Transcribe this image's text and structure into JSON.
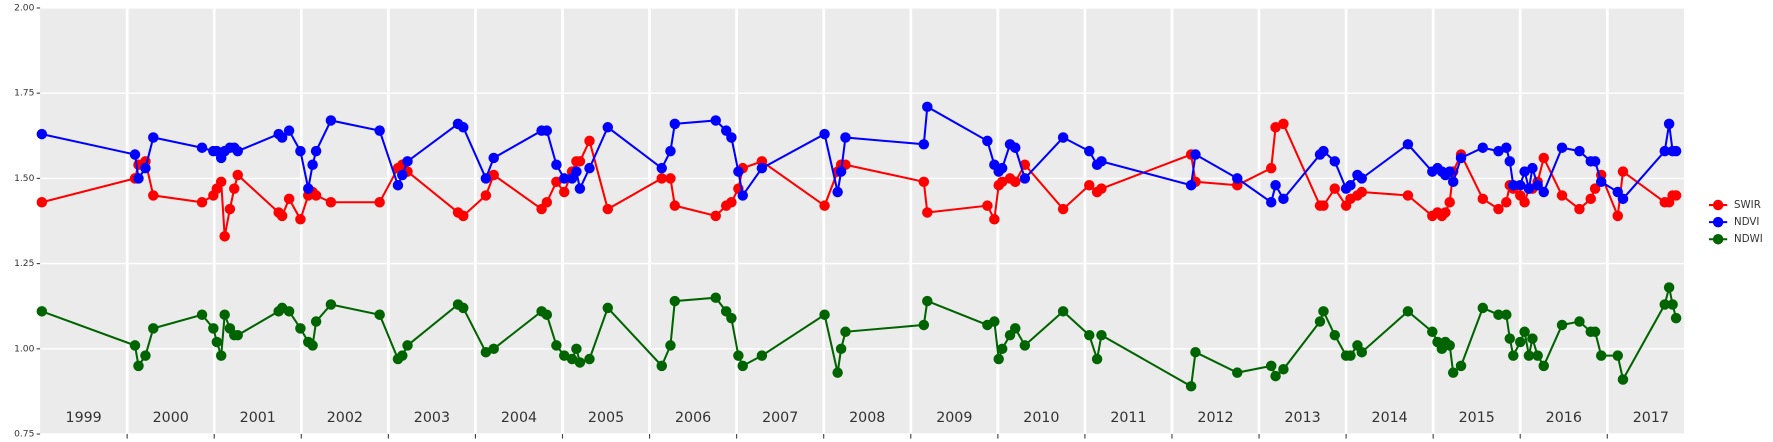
{
  "chart_data": {
    "type": "line",
    "x": [
      1999.02,
      2000.09,
      2000.13,
      2000.21,
      2000.3,
      2000.86,
      2000.99,
      2001.03,
      2001.08,
      2001.12,
      2001.18,
      2001.23,
      2001.27,
      2001.74,
      2001.78,
      2001.86,
      2001.99,
      2002.08,
      2002.13,
      2002.17,
      2002.34,
      2002.9,
      2003.11,
      2003.16,
      2003.22,
      2003.8,
      2003.86,
      2004.12,
      2004.21,
      2004.76,
      2004.82,
      2004.93,
      2005.02,
      2005.11,
      2005.16,
      2005.2,
      2005.31,
      2005.52,
      2006.14,
      2006.24,
      2006.29,
      2006.76,
      2006.88,
      2006.94,
      2007.02,
      2007.07,
      2007.29,
      2008.01,
      2008.16,
      2008.2,
      2008.25,
      2009.15,
      2009.19,
      2009.88,
      2009.96,
      2010.01,
      2010.05,
      2010.14,
      2010.2,
      2010.31,
      2010.75,
      2011.05,
      2011.14,
      2011.19,
      2012.22,
      2012.27,
      2012.75,
      2013.14,
      2013.19,
      2013.28,
      2013.7,
      2013.74,
      2013.87,
      2014.0,
      2014.05,
      2014.13,
      2014.18,
      2014.71,
      2014.99,
      2015.05,
      2015.1,
      2015.14,
      2015.19,
      2015.23,
      2015.32,
      2015.57,
      2015.75,
      2015.84,
      2015.88,
      2015.92,
      2016.0,
      2016.05,
      2016.1,
      2016.14,
      2016.2,
      2016.27,
      2016.48,
      2016.68,
      2016.81,
      2016.86,
      2016.93,
      2017.12,
      2017.18,
      2017.66,
      2017.71,
      2017.75,
      2017.79
    ],
    "series": [
      {
        "name": "SWIR",
        "color": "#ff0000",
        "values": [
          1.43,
          1.5,
          1.54,
          1.55,
          1.45,
          1.43,
          1.45,
          1.47,
          1.49,
          1.33,
          1.41,
          1.47,
          1.51,
          1.4,
          1.39,
          1.44,
          1.38,
          1.45,
          1.46,
          1.45,
          1.43,
          1.43,
          1.53,
          1.54,
          1.52,
          1.4,
          1.39,
          1.45,
          1.51,
          1.41,
          1.43,
          1.49,
          1.46,
          1.52,
          1.55,
          1.55,
          1.61,
          1.41,
          1.5,
          1.5,
          1.42,
          1.39,
          1.42,
          1.43,
          1.47,
          1.53,
          1.55,
          1.42,
          1.52,
          1.54,
          1.54,
          1.49,
          1.4,
          1.42,
          1.38,
          1.48,
          1.49,
          1.5,
          1.49,
          1.54,
          1.41,
          1.48,
          1.46,
          1.47,
          1.57,
          1.49,
          1.48,
          1.53,
          1.65,
          1.66,
          1.42,
          1.42,
          1.47,
          1.42,
          1.44,
          1.45,
          1.46,
          1.45,
          1.39,
          1.4,
          1.39,
          1.4,
          1.43,
          1.52,
          1.57,
          1.44,
          1.41,
          1.43,
          1.48,
          1.47,
          1.45,
          1.43,
          1.47,
          1.47,
          1.49,
          1.56,
          1.45,
          1.41,
          1.44,
          1.47,
          1.51,
          1.39,
          1.52,
          1.43,
          1.43,
          1.45,
          1.45
        ]
      },
      {
        "name": "NDVI",
        "color": "#0000ff",
        "values": [
          1.63,
          1.57,
          1.5,
          1.53,
          1.62,
          1.59,
          1.58,
          1.58,
          1.56,
          1.58,
          1.59,
          1.59,
          1.58,
          1.63,
          1.62,
          1.64,
          1.58,
          1.47,
          1.54,
          1.58,
          1.67,
          1.64,
          1.48,
          1.51,
          1.55,
          1.66,
          1.65,
          1.5,
          1.56,
          1.64,
          1.64,
          1.54,
          1.5,
          1.5,
          1.52,
          1.47,
          1.53,
          1.65,
          1.53,
          1.58,
          1.66,
          1.67,
          1.64,
          1.62,
          1.52,
          1.45,
          1.53,
          1.63,
          1.46,
          1.52,
          1.62,
          1.6,
          1.71,
          1.61,
          1.54,
          1.52,
          1.53,
          1.6,
          1.59,
          1.5,
          1.62,
          1.58,
          1.54,
          1.55,
          1.48,
          1.57,
          1.5,
          1.43,
          1.48,
          1.44,
          1.57,
          1.58,
          1.55,
          1.47,
          1.48,
          1.51,
          1.5,
          1.6,
          1.52,
          1.53,
          1.52,
          1.51,
          1.52,
          1.49,
          1.56,
          1.59,
          1.58,
          1.59,
          1.55,
          1.48,
          1.48,
          1.52,
          1.47,
          1.53,
          1.48,
          1.46,
          1.59,
          1.58,
          1.55,
          1.55,
          1.49,
          1.46,
          1.44,
          1.58,
          1.66,
          1.58,
          1.58
        ]
      },
      {
        "name": "NDWI",
        "color": "#006400",
        "values": [
          1.11,
          1.01,
          0.95,
          0.98,
          1.06,
          1.1,
          1.06,
          1.02,
          0.98,
          1.1,
          1.06,
          1.04,
          1.04,
          1.11,
          1.12,
          1.11,
          1.06,
          1.02,
          1.01,
          1.08,
          1.13,
          1.1,
          0.97,
          0.98,
          1.01,
          1.13,
          1.12,
          0.99,
          1.0,
          1.11,
          1.1,
          1.01,
          0.98,
          0.97,
          1.0,
          0.96,
          0.97,
          1.12,
          0.95,
          1.01,
          1.14,
          1.15,
          1.11,
          1.09,
          0.98,
          0.95,
          0.98,
          1.1,
          0.93,
          1.0,
          1.05,
          1.07,
          1.14,
          1.07,
          1.08,
          0.97,
          1.0,
          1.04,
          1.06,
          1.01,
          1.11,
          1.04,
          0.97,
          1.04,
          0.89,
          0.99,
          0.93,
          0.95,
          0.92,
          0.94,
          1.08,
          1.11,
          1.04,
          0.98,
          0.98,
          1.01,
          0.99,
          1.11,
          1.05,
          1.02,
          1.0,
          1.02,
          1.01,
          0.93,
          0.95,
          1.12,
          1.1,
          1.1,
          1.03,
          0.98,
          1.02,
          1.05,
          0.98,
          1.03,
          0.98,
          0.95,
          1.07,
          1.08,
          1.05,
          1.05,
          0.98,
          0.98,
          0.91,
          1.13,
          1.18,
          1.13,
          1.09
        ]
      }
    ],
    "xlim": [
      1999,
      2017.88
    ],
    "xticks": [
      2000,
      2001,
      2002,
      2003,
      2004,
      2005,
      2006,
      2007,
      2008,
      2009,
      2010,
      2011,
      2012,
      2013,
      2014,
      2015,
      2016,
      2017
    ],
    "year_labels": [
      {
        "value": 1999.5,
        "label": "1999"
      },
      {
        "value": 2000.5,
        "label": "2000"
      },
      {
        "value": 2001.5,
        "label": "2001"
      },
      {
        "value": 2002.5,
        "label": "2002"
      },
      {
        "value": 2003.5,
        "label": "2003"
      },
      {
        "value": 2004.5,
        "label": "2004"
      },
      {
        "value": 2005.5,
        "label": "2005"
      },
      {
        "value": 2006.5,
        "label": "2006"
      },
      {
        "value": 2007.5,
        "label": "2007"
      },
      {
        "value": 2008.5,
        "label": "2008"
      },
      {
        "value": 2009.5,
        "label": "2009"
      },
      {
        "value": 2010.5,
        "label": "2010"
      },
      {
        "value": 2011.5,
        "label": "2011"
      },
      {
        "value": 2012.5,
        "label": "2012"
      },
      {
        "value": 2013.5,
        "label": "2013"
      },
      {
        "value": 2014.5,
        "label": "2014"
      },
      {
        "value": 2015.5,
        "label": "2015"
      },
      {
        "value": 2016.5,
        "label": "2016"
      },
      {
        "value": 2017.5,
        "label": "2017"
      }
    ],
    "ylim": [
      0.75,
      2.0
    ],
    "yticks": [
      {
        "value": 0.75,
        "label": "0.75"
      },
      {
        "value": 1.0,
        "label": "1.00"
      },
      {
        "value": 1.25,
        "label": "1.25"
      },
      {
        "value": 1.5,
        "label": "1.50"
      },
      {
        "value": 1.75,
        "label": "1.75"
      },
      {
        "value": 2.0,
        "label": "2.00"
      }
    ],
    "grid": true,
    "legend": "right"
  }
}
